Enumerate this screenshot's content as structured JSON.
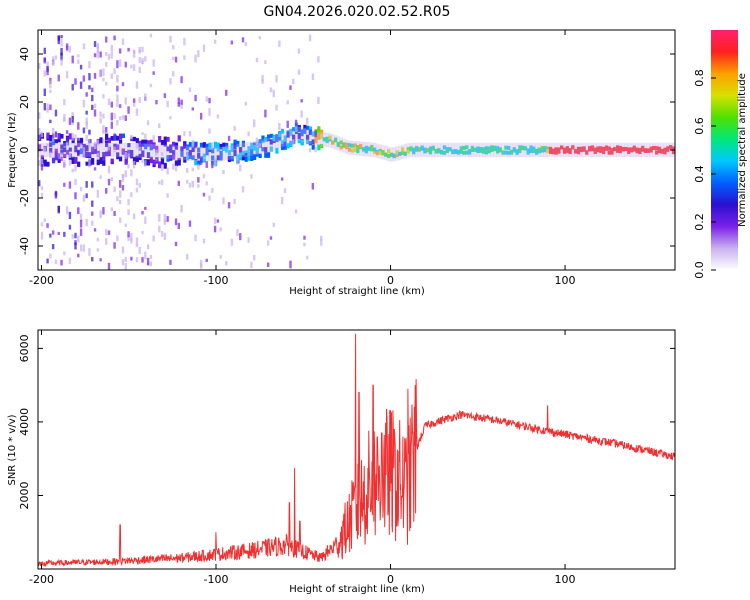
{
  "chart_data": [
    {
      "type": "heatmap",
      "title": "GN04.2026.020.02.52.R05",
      "xlabel": "Height of straight line (km)",
      "ylabel": "Frequency (Hz)",
      "xlim": [
        -202,
        163
      ],
      "ylim": [
        -50,
        50
      ],
      "xticks": [
        -200,
        -100,
        0,
        100
      ],
      "yticks": [
        -40,
        -20,
        0,
        20,
        40
      ],
      "colorbar": {
        "label": "Normalized spectral amplitude",
        "range": [
          0,
          1
        ],
        "ticks": [
          "0.0",
          "0.2",
          "0.4",
          "0.6",
          "0.8"
        ],
        "tick_values": [
          0.0,
          0.2,
          0.4,
          0.6,
          0.8
        ],
        "colors": [
          "#ffffff",
          "#c9b0f0",
          "#7a20e8",
          "#2a10d0",
          "#0060ff",
          "#00c8ff",
          "#00e878",
          "#50e000",
          "#d8e000",
          "#ffa000",
          "#ff2020",
          "#ff2070"
        ]
      },
      "ridge": [
        {
          "x": -200,
          "f": 0
        },
        {
          "x": -150,
          "f": 0
        },
        {
          "x": -100,
          "f": -2
        },
        {
          "x": -70,
          "f": 2
        },
        {
          "x": -55,
          "f": 7
        },
        {
          "x": -45,
          "f": 5
        },
        {
          "x": -35,
          "f": 4
        },
        {
          "x": -25,
          "f": 1
        },
        {
          "x": -10,
          "f": 0
        },
        {
          "x": 0,
          "f": -2
        },
        {
          "x": 10,
          "f": 0
        },
        {
          "x": 50,
          "f": 0
        },
        {
          "x": 90,
          "f": 0
        },
        {
          "x": 163,
          "f": 0
        }
      ]
    },
    {
      "type": "line",
      "title": "",
      "xlabel": "Height of straight line (km)",
      "ylabel": "SNR (10 * v/v)",
      "xlim": [
        -202,
        163
      ],
      "ylim": [
        0,
        6500
      ],
      "xticks": [
        -200,
        -100,
        0,
        100
      ],
      "yticks": [
        2000,
        4000,
        6000
      ],
      "color": "#f03030",
      "envelope": [
        {
          "x": -202,
          "y": 150
        },
        {
          "x": -160,
          "y": 200
        },
        {
          "x": -120,
          "y": 300
        },
        {
          "x": -100,
          "y": 400
        },
        {
          "x": -80,
          "y": 500
        },
        {
          "x": -60,
          "y": 650
        },
        {
          "x": -40,
          "y": 300
        },
        {
          "x": -30,
          "y": 700
        },
        {
          "x": -20,
          "y": 1600
        },
        {
          "x": -10,
          "y": 2400
        },
        {
          "x": 0,
          "y": 2600
        },
        {
          "x": 10,
          "y": 2200
        },
        {
          "x": 15,
          "y": 3300
        },
        {
          "x": 20,
          "y": 3900
        },
        {
          "x": 40,
          "y": 4200
        },
        {
          "x": 60,
          "y": 4050
        },
        {
          "x": 90,
          "y": 3750
        },
        {
          "x": 130,
          "y": 3400
        },
        {
          "x": 163,
          "y": 3050
        }
      ],
      "spikes": [
        {
          "x": -155,
          "y": 1200
        },
        {
          "x": -100,
          "y": 1000
        },
        {
          "x": -58,
          "y": 1800
        },
        {
          "x": -55,
          "y": 2750
        },
        {
          "x": -52,
          "y": 1300
        },
        {
          "x": -20,
          "y": 6400
        },
        {
          "x": -18,
          "y": 4800
        },
        {
          "x": -10,
          "y": 5000
        },
        {
          "x": -5,
          "y": 3700
        },
        {
          "x": 10,
          "y": 4900
        },
        {
          "x": 12,
          "y": 3600
        },
        {
          "x": 90,
          "y": 4450
        }
      ]
    }
  ]
}
